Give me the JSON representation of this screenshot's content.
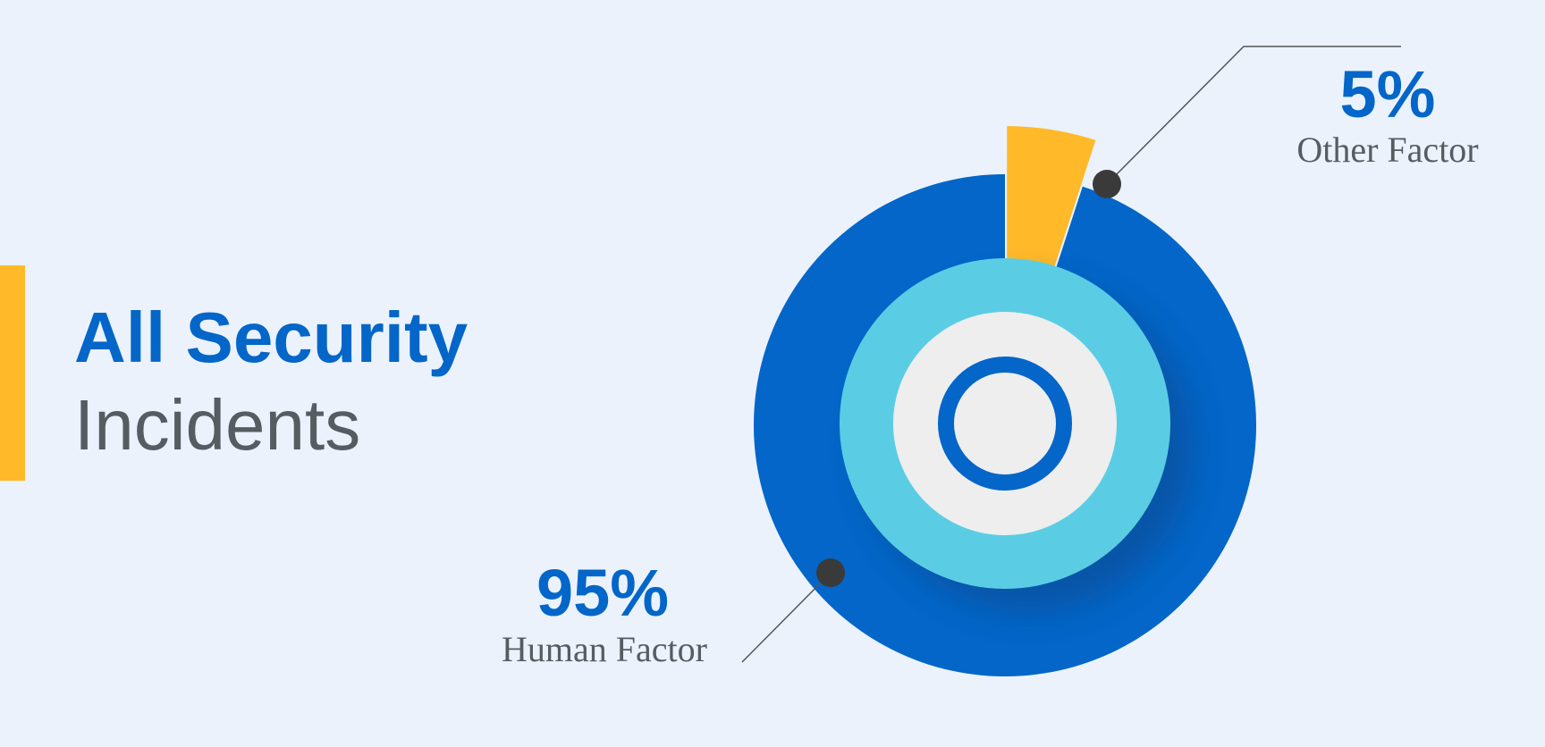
{
  "chart_data": {
    "type": "pie",
    "title": "All Security",
    "subtitle": "Incidents",
    "categories": [
      "Other Factor",
      "Human Factor"
    ],
    "values": [
      5,
      95
    ],
    "value_labels": [
      "5%",
      "95%"
    ],
    "colors": [
      "#ffb929",
      "#0366c8"
    ]
  }
}
